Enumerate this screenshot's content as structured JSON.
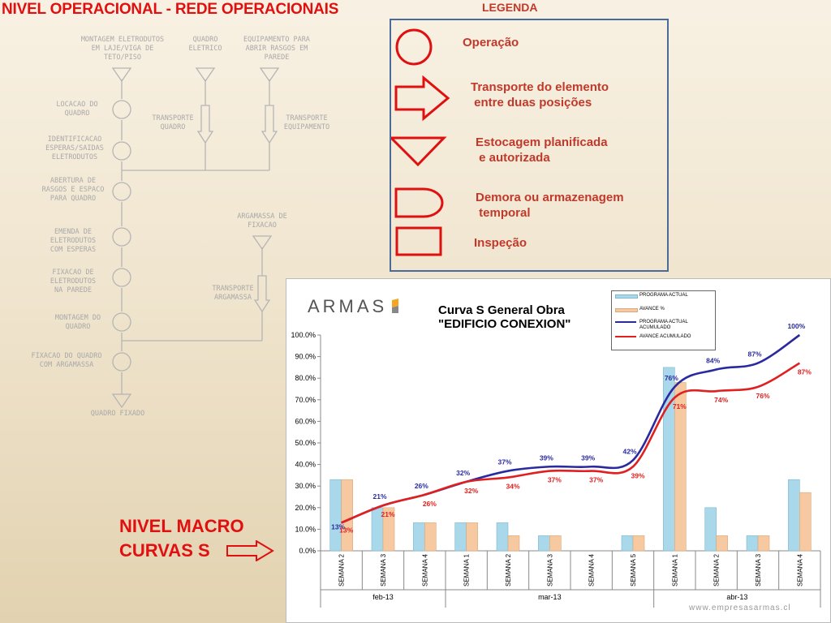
{
  "slide_title": "NIVEL OPERACIONAL - REDE OPERACIONAIS",
  "flowchart": {
    "labels": [
      {
        "id": "montagem-eletrodutos",
        "text": "MONTAGEM ELETRODUTOS\nEM LAJE/VIGA DE\nTETO/PISO"
      },
      {
        "id": "quadro-eletrico",
        "text": "QUADRO\nELETRICO"
      },
      {
        "id": "equipamento-abrir",
        "text": "EQUIPAMENTO PARA\nABRIR RASGOS EM\nPAREDE"
      },
      {
        "id": "locacao-quadro",
        "text": "LOCACAO DO\nQUADRO"
      },
      {
        "id": "transporte-quadro",
        "text": "TRANSPORTE\nQUADRO"
      },
      {
        "id": "transporte-equipamento",
        "text": "TRANSPORTE\nEQUIPAMENTO"
      },
      {
        "id": "identificacao-esperas",
        "text": "IDENTIFICACAO\nESPERAS/SAIDAS\nELETRODUTOS"
      },
      {
        "id": "abertura-rasgos",
        "text": "ABERTURA DE\nRASGOS E ESPACO\nPARA QUADRO"
      },
      {
        "id": "argamassa-fixacao",
        "text": "ARGAMASSA DE\nFIXACAO"
      },
      {
        "id": "emenda-eletrodutos",
        "text": "EMENDA DE\nELETRODUTOS\nCOM ESPERAS"
      },
      {
        "id": "fixacao-eletrodutos",
        "text": "FIXACAO DE\nELETRODUTOS\nNA PAREDE"
      },
      {
        "id": "transporte-argamassa",
        "text": "TRANSPORTE\nARGAMASSA"
      },
      {
        "id": "montagem-quadro",
        "text": "MONTAGEM DO\nQUADRO"
      },
      {
        "id": "fixacao-quadro",
        "text": "FIXACAO DO QUADRO\nCOM ARGAMASSA"
      },
      {
        "id": "quadro-fixado",
        "text": "QUADRO FIXADO"
      }
    ]
  },
  "legend": {
    "title": "LEGENDA",
    "items": [
      {
        "id": "operacao",
        "label": "Operação"
      },
      {
        "id": "transporte",
        "label": "Transporte do elemento\n entre duas posições"
      },
      {
        "id": "estocagem",
        "label": "Estocagem planificada\n e autorizada"
      },
      {
        "id": "demora",
        "label": "Demora ou armazenagem\n temporal"
      },
      {
        "id": "inspecao",
        "label": "Inspeção"
      }
    ],
    "color": "#e01010"
  },
  "macro_label": {
    "line1": "NIVEL  MACRO",
    "line2": "CURVAS S"
  },
  "chart": {
    "logo": "ARMAS",
    "title_line1": "Curva S General Obra",
    "title_line2": "\"EDIFICIO CONEXION\"",
    "legend": [
      "PROGRAMA ACTUAL",
      "AVANCE %",
      "PROGRAMA ACTUAL ACUMULADO",
      "AVANCE ACUMULADO"
    ],
    "watermark": "www.empresasarmas.cl",
    "colors": {
      "programa": "#a8d8ea",
      "avance": "#f7c9a0",
      "programa_acum": "#2a2aa0",
      "avance_acum": "#e02020"
    }
  },
  "chart_data": {
    "type": "bar",
    "title": "Curva S General Obra \"EDIFICIO CONEXION\"",
    "categories": [
      "SEMANA 2",
      "SEMANA 3",
      "SEMANA 4",
      "SEMANA 1",
      "SEMANA 2",
      "SEMANA 3",
      "SEMANA 4",
      "SEMANA 5",
      "SEMANA 1",
      "SEMANA 2",
      "SEMANA 3",
      "SEMANA 4"
    ],
    "month_groups": [
      {
        "label": "feb-13",
        "count": 3
      },
      {
        "label": "mar-13",
        "count": 5
      },
      {
        "label": "abr-13",
        "count": 4
      }
    ],
    "y_ticks": [
      "0.0%",
      "10.0%",
      "20.0%",
      "30.0%",
      "40.0%",
      "50.0%",
      "60.0%",
      "70.0%",
      "80.0%",
      "90.0%",
      "100.0%"
    ],
    "ylim": [
      0,
      100
    ],
    "series": [
      {
        "name": "PROGRAMA ACTUAL",
        "kind": "bar",
        "values": [
          33,
          20,
          13,
          13,
          13,
          7,
          0,
          7,
          85,
          20,
          7,
          33
        ]
      },
      {
        "name": "AVANCE %",
        "kind": "bar",
        "values": [
          33,
          20,
          13,
          13,
          7,
          7,
          0,
          7,
          78,
          7,
          7,
          27
        ]
      },
      {
        "name": "PROGRAMA ACTUAL ACUMULADO",
        "kind": "line",
        "values": [
          13,
          21,
          26,
          32,
          37,
          39,
          39,
          42,
          76,
          84,
          87,
          100
        ],
        "labels": [
          "13%",
          "21%",
          "26%",
          "32%",
          "37%",
          "39%",
          "39%",
          "42%",
          "76%",
          "84%",
          "87%",
          "100%"
        ]
      },
      {
        "name": "AVANCE ACUMULADO",
        "kind": "line",
        "values": [
          13,
          21,
          26,
          32,
          34,
          37,
          37,
          39,
          71,
          74,
          76,
          87
        ],
        "labels": [
          "13%",
          "21%",
          "26%",
          "32%",
          "34%",
          "37%",
          "37%",
          "39%",
          "71%",
          "74%",
          "76%",
          "87%"
        ]
      }
    ]
  }
}
